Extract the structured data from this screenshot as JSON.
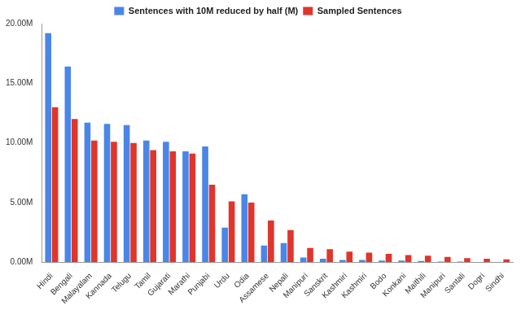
{
  "chart_data": {
    "type": "bar",
    "categories": [
      "Hindi",
      "Bengali",
      "Malayalam",
      "Kannada",
      "Telugu",
      "Tamil",
      "Gujarati",
      "Marathi",
      "Punjabi",
      "Urdu",
      "Odia",
      "Assamese",
      "Nepali",
      "Manipuri",
      "Sanskrit",
      "Kashmiri",
      "Kashmiri",
      "Bodo",
      "Konkani",
      "Maithili",
      "Manipuri",
      "Santali",
      "Dogri",
      "Sindhi"
    ],
    "series": [
      {
        "name": "Sentences with 10M reduced by half (M)",
        "color": "#4a86e8",
        "values": [
          19.2,
          16.4,
          11.7,
          11.6,
          11.5,
          10.2,
          10.1,
          9.3,
          9.7,
          2.9,
          5.7,
          1.4,
          1.6,
          0.4,
          0.3,
          0.2,
          0.2,
          0.15,
          0.15,
          0.1,
          0.05,
          0.05,
          0.03,
          0.02
        ]
      },
      {
        "name": "Sampled Sentences",
        "color": "#e0352b",
        "values": [
          13.0,
          12.0,
          10.2,
          10.1,
          10.0,
          9.4,
          9.3,
          9.1,
          6.5,
          5.1,
          5.0,
          3.5,
          2.7,
          1.2,
          1.1,
          0.9,
          0.8,
          0.7,
          0.6,
          0.55,
          0.45,
          0.35,
          0.3,
          0.25
        ]
      }
    ],
    "ylim": [
      0,
      20
    ],
    "yticks": [
      {
        "value": 0,
        "label": "0.00M"
      },
      {
        "value": 5,
        "label": "5.00M"
      },
      {
        "value": 10,
        "label": "10.00M"
      },
      {
        "value": 15,
        "label": "15.00M"
      },
      {
        "value": 20,
        "label": "20.00M"
      }
    ],
    "grid": false,
    "legend": "top"
  }
}
